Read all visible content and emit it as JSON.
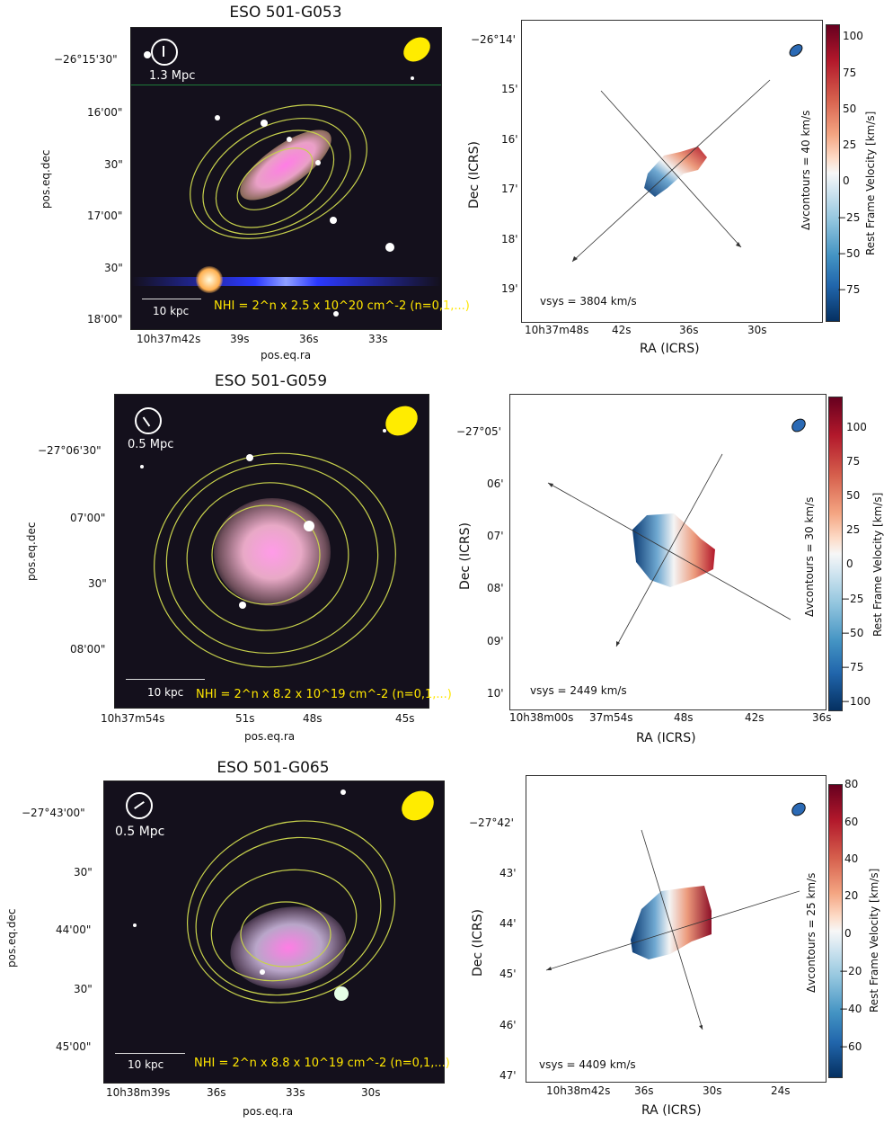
{
  "panels": [
    {
      "title": "ESO 501-G053",
      "optical": {
        "ra_ticks": [
          "10h37m42s",
          "39s",
          "36s",
          "33s"
        ],
        "dec_ticks": [
          "−26°15'30\"",
          "16'00\"",
          "30\"",
          "17'00\"",
          "30\"",
          "18'00\""
        ],
        "xlabel": "pos.eq.ra",
        "ylabel": "pos.eq.dec",
        "compass_label": "1.3 Mpc",
        "scalebar_label": "10 kpc",
        "nhi_label": "NHI = 2^n x 2.5 x 10^20 cm^-2 (n=0,1,...)"
      },
      "velocity": {
        "ra_ticks": [
          "10h37m48s",
          "42s",
          "36s",
          "30s"
        ],
        "dec_ticks": [
          "−26°14'",
          "15'",
          "16'",
          "17'",
          "18'",
          "19'"
        ],
        "xlabel": "RA (ICRS)",
        "ylabel": "Dec (ICRS)",
        "vsys_label": "vsys = 3804 km/s",
        "dv_label": "Δvcontours = 40 km/s",
        "colorbar_label": "Rest Frame Velocity [km/s]",
        "colorbar_ticks": [
          "100",
          "75",
          "50",
          "25",
          "0",
          "−25",
          "−50",
          "−75"
        ],
        "colorbar_range": [
          -90,
          110
        ]
      }
    },
    {
      "title": "ESO 501-G059",
      "optical": {
        "ra_ticks": [
          "10h37m54s",
          "51s",
          "48s",
          "45s"
        ],
        "dec_ticks": [
          "−27°06'30\"",
          "07'00\"",
          "30\"",
          "08'00\""
        ],
        "xlabel": "pos.eq.ra",
        "ylabel": "pos.eq.dec",
        "compass_label": "0.5 Mpc",
        "scalebar_label": "10 kpc",
        "nhi_label": "NHI = 2^n x 8.2 x 10^19 cm^-2 (n=0,1,...)"
      },
      "velocity": {
        "ra_ticks": [
          "10h38m00s",
          "37m54s",
          "48s",
          "42s",
          "36s"
        ],
        "dec_ticks": [
          "−27°05'",
          "06'",
          "07'",
          "08'",
          "09'",
          "10'"
        ],
        "xlabel": "RA (ICRS)",
        "ylabel": "Dec (ICRS)",
        "vsys_label": "vsys = 2449 km/s",
        "dv_label": "Δvcontours = 30 km/s",
        "colorbar_label": "Rest Frame Velocity [km/s]",
        "colorbar_ticks": [
          "100",
          "75",
          "50",
          "25",
          "0",
          "−25",
          "−50",
          "−75",
          "−100"
        ],
        "colorbar_range": [
          -110,
          120
        ]
      }
    },
    {
      "title": "ESO 501-G065",
      "optical": {
        "ra_ticks": [
          "10h38m39s",
          "36s",
          "33s",
          "30s"
        ],
        "dec_ticks": [
          "−27°43'00\"",
          "30\"",
          "44'00\"",
          "30\"",
          "45'00\""
        ],
        "xlabel": "pos.eq.ra",
        "ylabel": "pos.eq.dec",
        "compass_label": "0.5 Mpc",
        "scalebar_label": "10 kpc",
        "nhi_label": "NHI = 2^n x 8.8 x 10^19 cm^-2 (n=0,1,...)"
      },
      "velocity": {
        "ra_ticks": [
          "10h38m42s",
          "36s",
          "30s",
          "24s"
        ],
        "dec_ticks": [
          "−27°42'",
          "43'",
          "44'",
          "45'",
          "46'",
          "47'"
        ],
        "xlabel": "RA (ICRS)",
        "ylabel": "Dec (ICRS)",
        "vsys_label": "vsys = 4409 km/s",
        "dv_label": "Δvcontours = 25 km/s",
        "colorbar_label": "Rest Frame Velocity [km/s]",
        "colorbar_ticks": [
          "80",
          "60",
          "40",
          "20",
          "0",
          "−20",
          "−40",
          "−60"
        ],
        "colorbar_range": [
          -78,
          82
        ]
      }
    }
  ]
}
